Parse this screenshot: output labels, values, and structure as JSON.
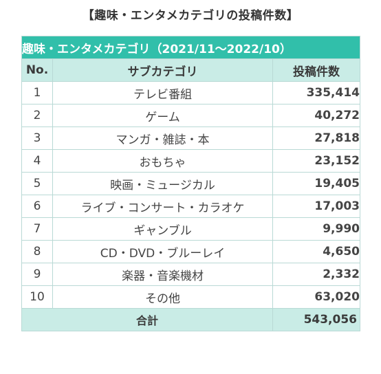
{
  "title": "【趣味・エンタメカテゴリの投稿件数】",
  "table": {
    "caption": "趣味・エンタメカテゴリ（2021/11～2022/10）",
    "headers": {
      "no": "No.",
      "category": "サブカテゴリ",
      "count": "投稿件数"
    },
    "rows": [
      {
        "no": "1",
        "category": "テレビ番組",
        "count": "335,414"
      },
      {
        "no": "2",
        "category": "ゲーム",
        "count": "40,272"
      },
      {
        "no": "3",
        "category": "マンガ・雑誌・本",
        "count": "27,818"
      },
      {
        "no": "4",
        "category": "おもちゃ",
        "count": "23,152"
      },
      {
        "no": "5",
        "category": "映画・ミュージカル",
        "count": "19,405"
      },
      {
        "no": "6",
        "category": "ライブ・コンサート・カラオケ",
        "count": "17,003"
      },
      {
        "no": "7",
        "category": "ギャンブル",
        "count": "9,990"
      },
      {
        "no": "8",
        "category": "CD・DVD・ブルーレイ",
        "count": "4,650"
      },
      {
        "no": "9",
        "category": "楽器・音楽機材",
        "count": "2,332"
      },
      {
        "no": "10",
        "category": "その他",
        "count": "63,020"
      }
    ],
    "total": {
      "label": "合計",
      "count": "543,056"
    }
  },
  "colors": {
    "caption_bg": "#31bfaa",
    "header_bg": "#c9ece6",
    "border": "#b9d9d5"
  }
}
